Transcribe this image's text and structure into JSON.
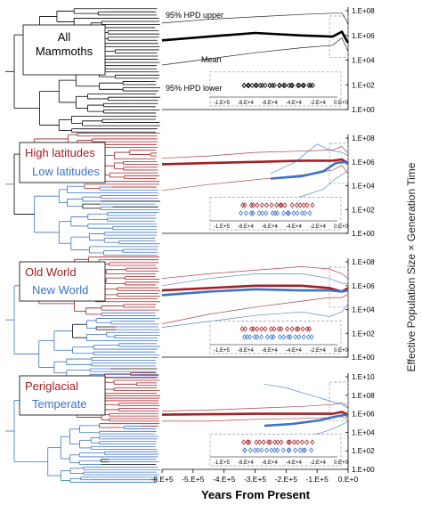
{
  "figure": {
    "ylabel": "Effective Population Size × Generation Time",
    "xlabel": "Years From Present",
    "x_ticks": [
      "-6.E+5",
      "-5.E+5",
      "-4.E+5",
      "-3.E+5",
      "-2.E+5",
      "-1.E+5",
      "0.E+0"
    ],
    "inset_ticks": [
      "-1.E+5",
      "-8.E+4",
      "-6.E+4",
      "-4.E+4",
      "-2.E+4",
      "0.E+0"
    ],
    "annotations": {
      "upper": "95% HPD upper",
      "mean": "Mean",
      "lower": "95% HPD lower"
    }
  },
  "colors": {
    "black": "#000000",
    "red": "#a31f24",
    "blue": "#3a73c8",
    "grey": "#8c8c8c"
  },
  "panels": [
    {
      "labels": [
        {
          "text": "All Mammoths",
          "color": "#000000"
        }
      ],
      "y_ticks": [
        "1.E+08",
        "1.E+06",
        "1.E+04",
        "1.E+02",
        "1.E+00"
      ]
    },
    {
      "labels": [
        {
          "text": "High latitudes",
          "color": "#a31f24"
        },
        {
          "text": "Low latitudes",
          "color": "#3a73c8"
        }
      ],
      "y_ticks": [
        "1.E+08",
        "1.E+06",
        "1.E+04",
        "1.E+02",
        "1.E+00"
      ]
    },
    {
      "labels": [
        {
          "text": "Old World",
          "color": "#a31f24"
        },
        {
          "text": "New World",
          "color": "#3a73c8"
        }
      ],
      "y_ticks": [
        "1.E+08",
        "1.E+06",
        "1.E+04",
        "1.E+02",
        "1.E+00"
      ]
    },
    {
      "labels": [
        {
          "text": "Periglacial",
          "color": "#a31f24"
        },
        {
          "text": "Temperate",
          "color": "#3a73c8"
        }
      ],
      "y_ticks": [
        "1.E+10",
        "1.E+08",
        "1.E+06",
        "1.E+04",
        "1.E+02",
        "1.E+00"
      ]
    }
  ],
  "chart_data": [
    {
      "type": "line",
      "xlim": [
        -600000,
        0
      ],
      "ylim": [
        0,
        8
      ],
      "y_scale": "log10",
      "series": [
        {
          "color": "#000000",
          "mean": [
            [
              -600000,
              5.6
            ],
            [
              -450000,
              5.9
            ],
            [
              -300000,
              6.2
            ],
            [
              -150000,
              6.0
            ],
            [
              -50000,
              5.9
            ],
            [
              -20000,
              6.3
            ],
            [
              -5000,
              5.6
            ],
            [
              0,
              5.4
            ]
          ],
          "upper": [
            [
              -600000,
              7.0
            ],
            [
              -450000,
              7.3
            ],
            [
              -300000,
              7.5
            ],
            [
              -150000,
              7.7
            ],
            [
              -50000,
              7.8
            ],
            [
              -20000,
              7.8
            ],
            [
              -5000,
              7.2
            ],
            [
              0,
              6.9
            ]
          ],
          "lower": [
            [
              -600000,
              3.6
            ],
            [
              -450000,
              4.1
            ],
            [
              -300000,
              4.6
            ],
            [
              -150000,
              5.0
            ],
            [
              -50000,
              5.2
            ],
            [
              -20000,
              5.8
            ],
            [
              -5000,
              5.0
            ],
            [
              0,
              4.7
            ]
          ]
        }
      ]
    },
    {
      "type": "line",
      "xlim": [
        -600000,
        0
      ],
      "ylim": [
        0,
        8
      ],
      "y_scale": "log10",
      "series": [
        {
          "color": "#a31f24",
          "mean": [
            [
              -600000,
              5.8
            ],
            [
              -450000,
              5.9
            ],
            [
              -300000,
              6.0
            ],
            [
              -150000,
              6.1
            ],
            [
              -50000,
              6.1
            ],
            [
              -20000,
              6.2
            ],
            [
              0,
              5.9
            ]
          ],
          "upper": [
            [
              -600000,
              6.3
            ],
            [
              -450000,
              6.5
            ],
            [
              -300000,
              6.8
            ],
            [
              -150000,
              6.9
            ],
            [
              -50000,
              7.0
            ],
            [
              -20000,
              7.3
            ],
            [
              0,
              6.7
            ]
          ],
          "lower": [
            [
              -600000,
              3.6
            ],
            [
              -450000,
              4.1
            ],
            [
              -300000,
              4.5
            ],
            [
              -150000,
              4.9
            ],
            [
              -50000,
              5.3
            ],
            [
              -20000,
              5.7
            ],
            [
              0,
              5.0
            ]
          ]
        },
        {
          "color": "#3a73c8",
          "mean": [
            [
              -250000,
              4.6
            ],
            [
              -150000,
              4.8
            ],
            [
              -80000,
              5.2
            ],
            [
              -40000,
              5.9
            ],
            [
              -10000,
              6.0
            ],
            [
              0,
              5.8
            ]
          ],
          "upper": [
            [
              -250000,
              5.0
            ],
            [
              -170000,
              6.0
            ],
            [
              -100000,
              7.5
            ],
            [
              -60000,
              7.0
            ],
            [
              -20000,
              6.8
            ],
            [
              0,
              6.5
            ]
          ],
          "lower": [
            [
              -220000,
              2.6
            ],
            [
              -150000,
              3.1
            ],
            [
              -80000,
              3.7
            ],
            [
              -40000,
              4.6
            ],
            [
              -10000,
              5.1
            ],
            [
              0,
              5.3
            ]
          ]
        }
      ]
    },
    {
      "type": "line",
      "xlim": [
        -600000,
        0
      ],
      "ylim": [
        0,
        8
      ],
      "y_scale": "log10",
      "series": [
        {
          "color": "#a31f24",
          "mean": [
            [
              -600000,
              5.6
            ],
            [
              -450000,
              5.8
            ],
            [
              -300000,
              6.0
            ],
            [
              -150000,
              6.0
            ],
            [
              -60000,
              5.8
            ],
            [
              -20000,
              5.5
            ],
            [
              0,
              5.8
            ]
          ],
          "upper": [
            [
              -600000,
              6.6
            ],
            [
              -450000,
              7.0
            ],
            [
              -300000,
              7.3
            ],
            [
              -150000,
              7.6
            ],
            [
              -60000,
              7.4
            ],
            [
              -20000,
              7.0
            ],
            [
              0,
              6.6
            ]
          ],
          "lower": [
            [
              -600000,
              2.8
            ],
            [
              -450000,
              3.6
            ],
            [
              -300000,
              4.2
            ],
            [
              -150000,
              4.7
            ],
            [
              -60000,
              5.0
            ],
            [
              -20000,
              5.0
            ],
            [
              0,
              5.3
            ]
          ]
        },
        {
          "color": "#3a73c8",
          "mean": [
            [
              -600000,
              5.2
            ],
            [
              -450000,
              5.5
            ],
            [
              -300000,
              5.7
            ],
            [
              -150000,
              5.6
            ],
            [
              -60000,
              5.6
            ],
            [
              -20000,
              5.5
            ],
            [
              0,
              5.6
            ]
          ],
          "upper": [
            [
              -600000,
              6.0
            ],
            [
              -450000,
              6.6
            ],
            [
              -300000,
              7.0
            ],
            [
              -150000,
              7.0
            ],
            [
              -60000,
              6.6
            ],
            [
              -20000,
              6.2
            ],
            [
              0,
              6.2
            ]
          ],
          "lower": [
            [
              -600000,
              2.5
            ],
            [
              -450000,
              3.0
            ],
            [
              -300000,
              3.5
            ],
            [
              -150000,
              3.8
            ],
            [
              -60000,
              3.4
            ],
            [
              -20000,
              3.8
            ],
            [
              0,
              4.5
            ]
          ]
        }
      ]
    },
    {
      "type": "line",
      "xlim": [
        -600000,
        0
      ],
      "ylim": [
        0,
        10
      ],
      "y_scale": "log10",
      "series": [
        {
          "color": "#a31f24",
          "mean": [
            [
              -600000,
              5.9
            ],
            [
              -450000,
              5.95
            ],
            [
              -300000,
              6.0
            ],
            [
              -150000,
              6.0
            ],
            [
              -50000,
              6.0
            ],
            [
              -20000,
              6.2
            ],
            [
              0,
              5.9
            ]
          ],
          "upper": [
            [
              -600000,
              6.3
            ],
            [
              -450000,
              6.4
            ],
            [
              -300000,
              6.6
            ],
            [
              -150000,
              6.8
            ],
            [
              -50000,
              7.0
            ],
            [
              -20000,
              7.2
            ],
            [
              0,
              6.8
            ]
          ],
          "lower": [
            [
              -600000,
              5.2
            ],
            [
              -450000,
              5.2
            ],
            [
              -300000,
              5.4
            ],
            [
              -150000,
              5.5
            ],
            [
              -50000,
              5.6
            ],
            [
              -20000,
              5.7
            ],
            [
              0,
              5.4
            ]
          ]
        },
        {
          "color": "#3a73c8",
          "mean": [
            [
              -270000,
              4.7
            ],
            [
              -180000,
              4.9
            ],
            [
              -90000,
              5.3
            ],
            [
              -40000,
              5.7
            ],
            [
              -10000,
              5.9
            ],
            [
              0,
              5.7
            ]
          ],
          "upper": [
            [
              -270000,
              9.2
            ],
            [
              -200000,
              8.8
            ],
            [
              -120000,
              8.0
            ],
            [
              -60000,
              7.4
            ],
            [
              -20000,
              7.0
            ],
            [
              0,
              6.6
            ]
          ],
          "lower": [
            [
              -270000,
              3.0
            ],
            [
              -180000,
              3.4
            ],
            [
              -90000,
              3.9
            ],
            [
              -40000,
              4.5
            ],
            [
              -10000,
              5.0
            ],
            [
              0,
              5.2
            ]
          ]
        }
      ]
    }
  ]
}
